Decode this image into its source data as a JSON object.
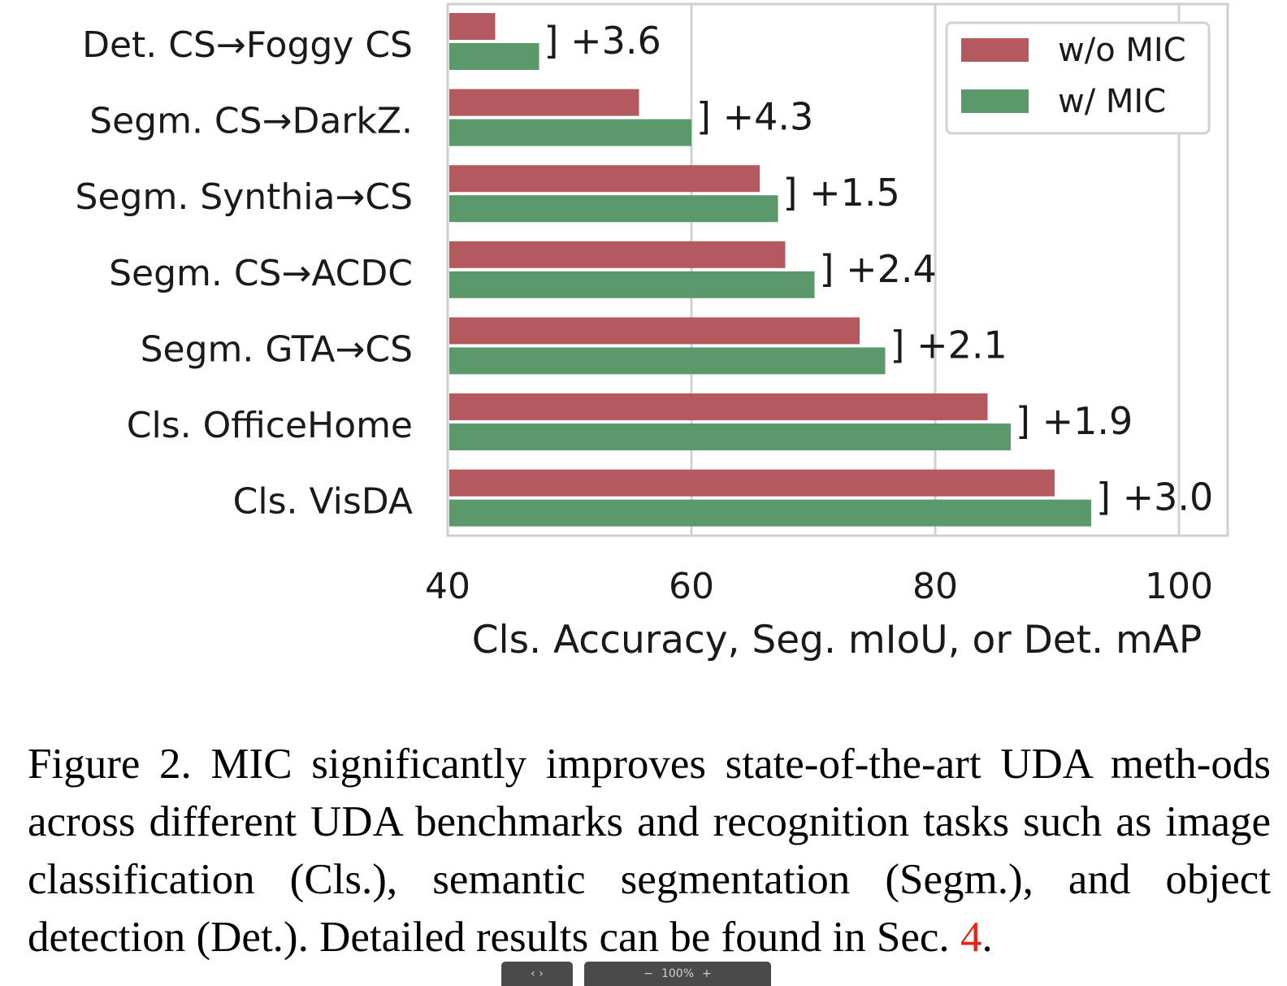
{
  "chart_data": {
    "type": "bar",
    "orientation": "horizontal",
    "categories": [
      "Det. CS→Foggy CS",
      "Segm. CS→DarkZ.",
      "Segm. Synthia→CS",
      "Segm. CS→ACDC",
      "Segm. GTA→CS",
      "Cls. OfficeHome",
      "Cls. VisDA"
    ],
    "series": [
      {
        "name": "w/o MIC",
        "color": "#b45a5e",
        "values": [
          43.9,
          55.7,
          65.6,
          67.7,
          73.8,
          84.3,
          89.8
        ]
      },
      {
        "name": "w/ MIC",
        "color": "#5a9a6a",
        "values": [
          47.5,
          60.0,
          67.1,
          70.1,
          75.9,
          86.2,
          92.8
        ]
      }
    ],
    "deltas": [
      "] +3.6",
      "] +4.3",
      "] +1.5",
      "] +2.4",
      "] +2.1",
      "] +1.9",
      "] +3.0"
    ],
    "xlabel": "Cls. Accuracy, Seg. mIoU, or Det. mAP",
    "xlim": [
      40,
      104
    ],
    "xticks": [
      "40",
      "60",
      "80",
      "100"
    ],
    "xtick_values": [
      40,
      60,
      80,
      100
    ],
    "grid": "vertical",
    "legend_position": "top-right"
  },
  "caption": {
    "text": "Figure 2. MIC significantly improves state-of-the-art UDA meth-ods across different UDA benchmarks and recognition tasks such as image classification (Cls.), semantic segmentation (Segm.), and object detection (Det.). Detailed results can be found in Sec. ",
    "ref": "4",
    "end": "."
  },
  "viewer": {
    "nav_label": "‹ ›",
    "zoom_label": "100%",
    "zoom_out": "−",
    "zoom_in": "+"
  }
}
